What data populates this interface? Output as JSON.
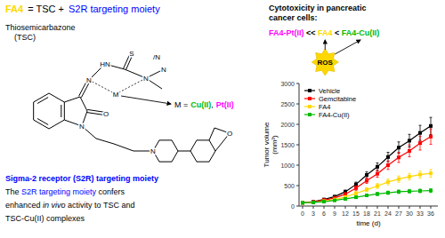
{
  "chart_data": {
    "type": "line",
    "x": [
      0,
      3,
      6,
      9,
      12,
      15,
      18,
      21,
      24,
      27,
      30,
      33,
      36
    ],
    "xlim": [
      -1,
      38
    ],
    "xticks": [
      0,
      3,
      6,
      9,
      12,
      15,
      18,
      21,
      24,
      27,
      30,
      33,
      36
    ],
    "ylim": [
      0,
      3000
    ],
    "yticks": [
      0,
      500,
      1000,
      1500,
      2000,
      2500,
      3000
    ],
    "xlabel": "time (d)",
    "ylabel": "Tumor volume\n(mm³)",
    "legend": "upper left",
    "marker": "square",
    "series": [
      {
        "name": "Vehicle",
        "color": "#000000",
        "values": [
          80,
          105,
          160,
          230,
          350,
          530,
          760,
          960,
          1200,
          1430,
          1600,
          1790,
          1960
        ],
        "errors": [
          8,
          12,
          18,
          25,
          40,
          55,
          75,
          95,
          115,
          140,
          155,
          185,
          210
        ]
      },
      {
        "name": "Gemcitabine",
        "color": "#FF0000",
        "values": [
          80,
          100,
          145,
          200,
          290,
          440,
          620,
          790,
          1000,
          1190,
          1350,
          1540,
          1700
        ],
        "errors": [
          8,
          12,
          18,
          25,
          38,
          55,
          65,
          85,
          105,
          125,
          145,
          170,
          190
        ]
      },
      {
        "name": "FA4",
        "color": "#FFD700",
        "values": [
          80,
          90,
          120,
          160,
          220,
          310,
          400,
          490,
          590,
          660,
          720,
          770,
          800
        ],
        "errors": [
          8,
          10,
          15,
          22,
          32,
          42,
          50,
          60,
          70,
          75,
          80,
          85,
          95
        ]
      },
      {
        "name": "FA4-Cu(II)",
        "color": "#00BB00",
        "values": [
          80,
          88,
          108,
          138,
          175,
          215,
          260,
          295,
          325,
          350,
          362,
          370,
          378
        ],
        "errors": [
          8,
          10,
          13,
          18,
          22,
          27,
          32,
          37,
          40,
          42,
          43,
          44,
          46
        ]
      }
    ],
    "annotations": [
      {
        "parts": [
          {
            "text": "FA4",
            "color": "#FFD700"
          },
          {
            "text": "= TSC +",
            "color": "#000000"
          },
          {
            "text": "S2R targeting moiety",
            "color": "#0000FF"
          }
        ]
      },
      {
        "text": "Thiosemicarbazone"
      },
      {
        "text": "(TSC)"
      },
      {
        "parts": [
          {
            "text": "M =",
            "color": "#000000"
          },
          {
            "text": "Cu(II)",
            "color": "#00BB00"
          },
          {
            "text": ",",
            "color": "#000000"
          },
          {
            "text": "Pt(II)",
            "color": "#FF00FF"
          }
        ]
      },
      {
        "text": "Sigma-2 receptor (S2R) targeting moiety",
        "color": "#0000FF"
      },
      {
        "parts": [
          {
            "text": "The ",
            "color": "#000000"
          },
          {
            "text": "S2R targeting moiety",
            "color": "#0000FF"
          },
          {
            "text": " confers",
            "color": "#000000"
          }
        ]
      },
      {
        "parts": [
          {
            "text": "enhanced ",
            "color": "#000000"
          },
          {
            "text": "in vivo",
            "color": "#000000"
          },
          {
            "text": " activity to TSC and",
            "color": "#000000"
          }
        ]
      },
      {
        "text": "TSC-Cu(II) complexes"
      },
      {
        "text": "Cytotoxicity in pancreatic"
      },
      {
        "text": "cancer cells:"
      },
      {
        "parts": [
          {
            "text": "FA4-Pt(II)",
            "color": "#FF00FF"
          },
          {
            "text": " << ",
            "color": "#000000"
          },
          {
            "text": "FA4",
            "color": "#FFD700"
          },
          {
            "text": " < ",
            "color": "#000000"
          },
          {
            "text": "FA4-Cu(II)",
            "color": "#00BB00"
          }
        ]
      },
      {
        "text": "ROS"
      },
      {
        "text": "O"
      },
      {
        "text": "N"
      },
      {
        "text": "N"
      },
      {
        "text": "O"
      },
      {
        "text": "M"
      },
      {
        "text": "HN"
      },
      {
        "text": "S"
      },
      {
        "text": "N"
      },
      {
        "text": "N"
      },
      {
        "text": "/N"
      },
      {
        "text": "N"
      }
    ]
  }
}
